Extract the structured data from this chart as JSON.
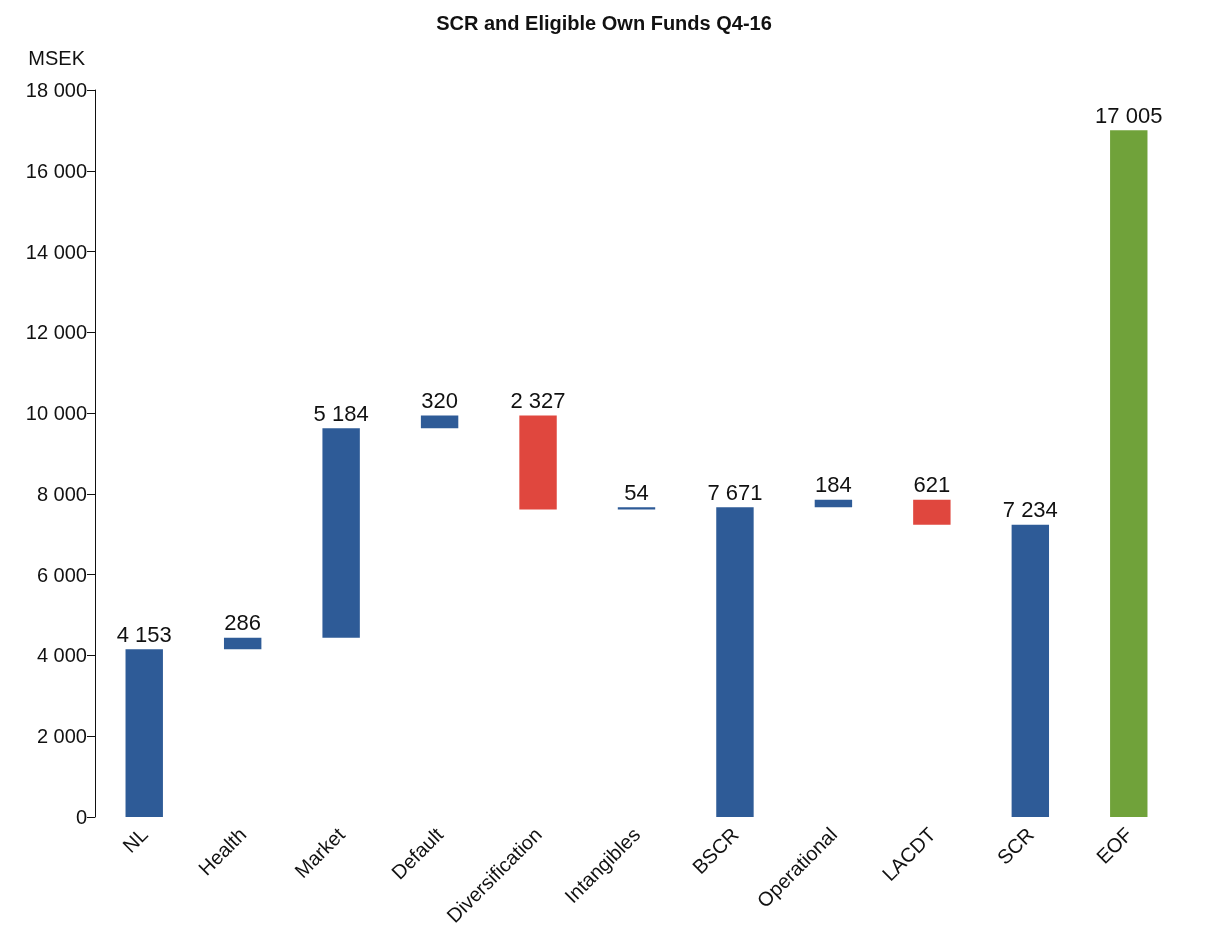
{
  "chart_data": {
    "type": "bar",
    "title": "SCR and Eligible Own Funds Q4-16",
    "ylabel": "MSEK",
    "categories": [
      "NL",
      "Health",
      "Market",
      "Default",
      "Diversification",
      "Intangibles",
      "BSCR",
      "Operational",
      "LACDT",
      "SCR",
      "EOF"
    ],
    "values": [
      4153,
      286,
      5184,
      320,
      -2327,
      54,
      7671,
      184,
      -621,
      7234,
      17005
    ],
    "base": [
      0,
      4153,
      4439,
      9623,
      9943,
      7616,
      0,
      7671,
      7855,
      0,
      0
    ],
    "colors": [
      "#2e5b97",
      "#2e5b97",
      "#2e5b97",
      "#2e5b97",
      "#e0473e",
      "#2e5b97",
      "#2e5b97",
      "#2e5b97",
      "#e0473e",
      "#2e5b97",
      "#70a23a"
    ],
    "value_labels": [
      "4 153",
      "286",
      "5 184",
      "320",
      "2 327",
      "54",
      "7 671",
      "184",
      "621",
      "7 234",
      "17 005"
    ],
    "ylim": [
      0,
      18000
    ],
    "yticks": [
      {
        "value": 0,
        "label": "0"
      },
      {
        "value": 2000,
        "label": "2 000"
      },
      {
        "value": 4000,
        "label": "4 000"
      },
      {
        "value": 6000,
        "label": "6 000"
      },
      {
        "value": 8000,
        "label": "8 000"
      },
      {
        "value": 10000,
        "label": "10 000"
      },
      {
        "value": 12000,
        "label": "12 000"
      },
      {
        "value": 14000,
        "label": "14 000"
      },
      {
        "value": 16000,
        "label": "16 000"
      },
      {
        "value": 18000,
        "label": "18 000"
      }
    ],
    "grid": false
  }
}
